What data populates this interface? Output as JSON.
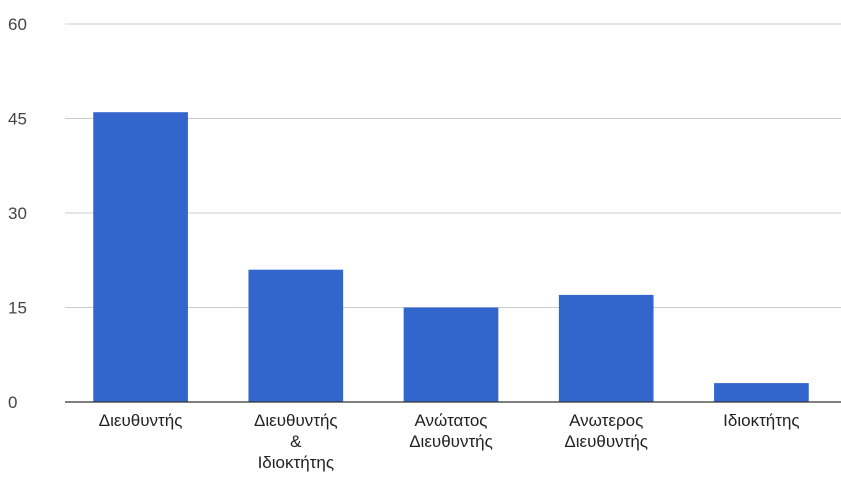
{
  "chart_data": {
    "type": "bar",
    "categories": [
      [
        "Διευθυντής"
      ],
      [
        "Διευθυντής",
        "&",
        "Ιδιοκτήτης"
      ],
      [
        "Ανώτατος",
        "Διευθυντής"
      ],
      [
        "Ανωτερος",
        "Διευθυντής"
      ],
      [
        "Ιδιοκτήτης"
      ]
    ],
    "values": [
      46,
      21,
      15,
      17,
      3
    ],
    "ylim": [
      0,
      60
    ],
    "yticks": [
      "0",
      "15",
      "30",
      "45",
      "60"
    ],
    "grid": true,
    "bar_color": "#3366cc",
    "grid_color": "#cccccc",
    "baseline_color": "#333333"
  }
}
